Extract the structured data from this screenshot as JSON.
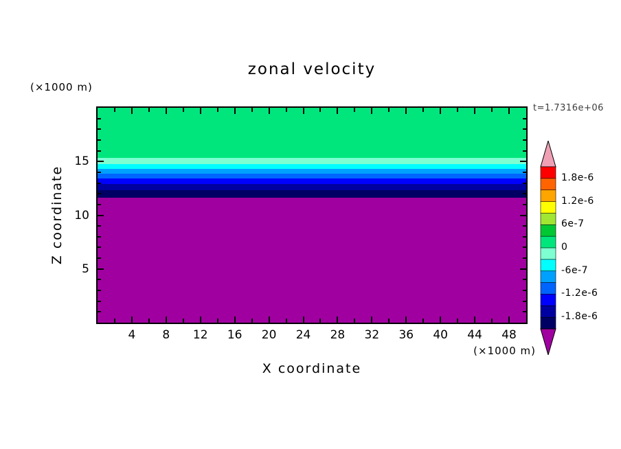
{
  "chart": {
    "title": "zonal velocity",
    "time_label": "t=1.7316e+06",
    "x_axis": {
      "label": "X coordinate",
      "unit": "(×1000 m)"
    },
    "z_axis": {
      "label": "Z coordinate",
      "unit": "(×1000 m)"
    }
  },
  "chart_data": {
    "type": "heatmap",
    "title": "zonal velocity",
    "xlabel": "X coordinate",
    "ylabel": "Z coordinate",
    "x_unit": "(×1000 m)",
    "y_unit": "(×1000 m)",
    "xlim": [
      0,
      50
    ],
    "ylim": [
      0,
      20
    ],
    "x_major_ticks": [
      4,
      8,
      12,
      16,
      20,
      24,
      28,
      32,
      36,
      40,
      44,
      48
    ],
    "x_minor_step": 2,
    "y_major_ticks": [
      5,
      10,
      15
    ],
    "y_minor_step": 1,
    "annotation": "t=1.7316e+06",
    "field_description": "Zonal velocity is horizontally uniform (varies only with Z): near-zero positive above z≈15.4, decreasing through negative values in thin layers between z≈15.4 and z≈11.6, and strongly negative (below -2.1e-6, off colour scale) from z≈11.6 down to 0.",
    "bands": [
      {
        "z_from": 15.35,
        "z_to": 20.0,
        "value_range": [
          0,
          3e-07
        ],
        "color": "#00E67D"
      },
      {
        "z_from": 14.75,
        "z_to": 15.35,
        "value_range": [
          -3e-07,
          0
        ],
        "color": "#7DFFD2"
      },
      {
        "z_from": 14.3,
        "z_to": 14.75,
        "value_range": [
          -6e-07,
          -3e-07
        ],
        "color": "#00FFFF"
      },
      {
        "z_from": 13.85,
        "z_to": 14.3,
        "value_range": [
          -9e-07,
          -6e-07
        ],
        "color": "#00A0FF"
      },
      {
        "z_from": 13.4,
        "z_to": 13.85,
        "value_range": [
          -1.2e-06,
          -9e-07
        ],
        "color": "#0064FF"
      },
      {
        "z_from": 12.9,
        "z_to": 13.4,
        "value_range": [
          -1.5e-06,
          -1.2e-06
        ],
        "color": "#0000FF"
      },
      {
        "z_from": 12.35,
        "z_to": 12.9,
        "value_range": [
          -1.8e-06,
          -1.5e-06
        ],
        "color": "#0000A0"
      },
      {
        "z_from": 11.65,
        "z_to": 12.35,
        "value_range": [
          -2.1e-06,
          -1.8e-06
        ],
        "color": "#000064"
      },
      {
        "z_from": 0.0,
        "z_to": 11.65,
        "value_range": "< -2.1e-6",
        "color": "#A000A0"
      }
    ],
    "colorbar": {
      "labels": [
        "1.8e-6",
        "1.2e-6",
        "6e-7",
        "0",
        "-6e-7",
        "-1.2e-6",
        "-1.8e-6"
      ],
      "boundaries": [
        2.1e-06,
        1.8e-06,
        1.5e-06,
        1.2e-06,
        9e-07,
        6e-07,
        3e-07,
        0,
        -3e-07,
        -6e-07,
        -9e-07,
        -1.2e-06,
        -1.5e-06,
        -1.8e-06,
        -2.1e-06
      ],
      "segment_colors": [
        "#FF0000",
        "#FF6400",
        "#FFA500",
        "#FFFF00",
        "#A0E632",
        "#00C832",
        "#00E67D",
        "#7DFFD2",
        "#00FFFF",
        "#00A0FF",
        "#0064FF",
        "#0000FF",
        "#0000A0",
        "#000064"
      ],
      "over_arrow_color": "#F0A0B4",
      "under_arrow_color": "#A000A0"
    }
  }
}
